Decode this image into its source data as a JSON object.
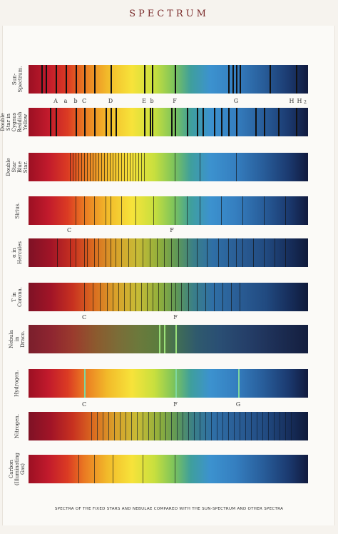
{
  "title": "SPECTRUM",
  "caption": "SPECTRA OF THE FIXED STARS AND NEBULAE COMPARED WITH THE SUN-SPECTRUM AND OTHER SPECTRA",
  "rows": [
    {
      "label": "Sun-\nSpectrum.",
      "variant": "bright"
    },
    {
      "label": "Double Star in Cygnus\nReddish Yellow Star.",
      "variant": "bright"
    },
    {
      "label": "Double Star\nBlue Star.",
      "variant": "bright"
    },
    {
      "label": "Sirius.",
      "variant": "bright"
    },
    {
      "label": "α in Hercules",
      "variant": "dark"
    },
    {
      "label": "T in Corona.",
      "variant": "dark"
    },
    {
      "label": "Nebula\nin Draco.",
      "variant": "faint"
    },
    {
      "label": "Hydrogen.",
      "variant": "bright"
    },
    {
      "label": "Nitrogen.",
      "variant": "dark"
    },
    {
      "label": "Carbon\n(Illuminating Gas)",
      "variant": "bright"
    }
  ],
  "line_markers_row1": [
    "A",
    "a",
    "b",
    "C",
    "D",
    "E",
    "b",
    "F",
    "G",
    "H",
    "H",
    "2"
  ],
  "line_markers_row4": [
    "C",
    "F"
  ],
  "line_markers_row6": [
    "C",
    "F"
  ],
  "line_markers_row8": [
    "C",
    "F",
    "G"
  ]
}
